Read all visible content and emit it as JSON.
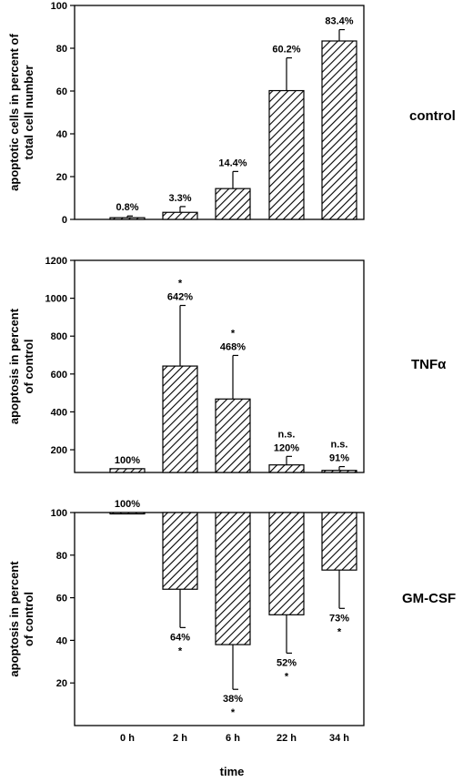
{
  "chart_data": [
    {
      "type": "bar",
      "panel_label": "control",
      "ylabel": [
        "apoptotic cells in percent of",
        "total cell number"
      ],
      "categories": [
        "0 h",
        "2 h",
        "6 h",
        "22 h",
        "34 h"
      ],
      "values": [
        0.8,
        3.3,
        14.4,
        60.2,
        83.4
      ],
      "errors": [
        0.8,
        2.7,
        8.0,
        15.3,
        5.3
      ],
      "labels": [
        [
          "0.8%"
        ],
        [
          "3.3%"
        ],
        [
          "14.4%"
        ],
        [
          "60.2%"
        ],
        [
          "83.4%"
        ]
      ],
      "ylim": [
        0,
        100
      ],
      "baseline": 0,
      "yticks": [
        0,
        20,
        40,
        60,
        80,
        100
      ]
    },
    {
      "type": "bar",
      "panel_label": "TNFα",
      "ylabel": [
        "apoptosis in percent",
        "of control"
      ],
      "categories": [
        "0 h",
        "2 h",
        "6 h",
        "22 h",
        "34 h"
      ],
      "values": [
        100,
        642,
        468,
        120,
        91
      ],
      "errors": [
        0,
        320,
        230,
        45,
        20
      ],
      "labels": [
        [
          "100%"
        ],
        [
          "*",
          "642%"
        ],
        [
          "*",
          "468%"
        ],
        [
          "n.s.",
          "120%"
        ],
        [
          "n.s.",
          "91%"
        ]
      ],
      "ylim": [
        80,
        1200
      ],
      "baseline": 80,
      "yticks": [
        200,
        400,
        600,
        800,
        1000,
        1200
      ]
    },
    {
      "type": "bar",
      "panel_label": "GM-CSF",
      "ylabel": [
        "apoptosis in percent",
        "of control"
      ],
      "categories": [
        "0 h",
        "2 h",
        "6 h",
        "22 h",
        "34 h"
      ],
      "values": [
        100,
        64,
        38,
        52,
        73
      ],
      "errors": [
        0,
        18,
        21,
        18,
        18
      ],
      "labels": [
        [
          "100%"
        ],
        [
          "64%",
          "*"
        ],
        [
          "38%",
          "*"
        ],
        [
          "52%",
          "*"
        ],
        [
          "73%",
          "*"
        ]
      ],
      "ylim": [
        0,
        100
      ],
      "baseline": 100,
      "yticks": [
        20,
        40,
        60,
        80,
        100
      ]
    }
  ],
  "x_axis": {
    "tick_labels": [
      "0 h",
      "2 h",
      "6 h",
      "22 h",
      "34 h"
    ],
    "xlabel": "time"
  }
}
